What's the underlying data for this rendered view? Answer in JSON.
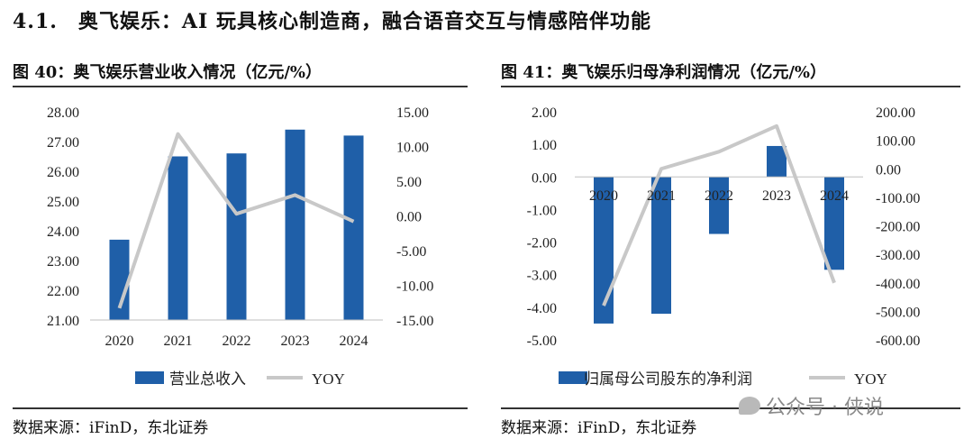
{
  "section_title": "4.1.　奥飞娱乐：AI 玩具核心制造商，融合语音交互与情感陪伴功能",
  "watermark": {
    "icon": "wechat-icon",
    "text": "公众号 · 侠说"
  },
  "chart_data": [
    {
      "type": "bar",
      "title": "图  40：奥飞娱乐营业收入情况（亿元/%）",
      "source": "数据来源：iFinD，东北证券",
      "categories": [
        "2020",
        "2021",
        "2022",
        "2023",
        "2024"
      ],
      "series": [
        {
          "name": "营业总收入",
          "type": "bar",
          "axis": "left",
          "color": "#1f5fa8",
          "values": [
            23.7,
            26.5,
            26.6,
            27.4,
            27.2
          ]
        },
        {
          "name": "YOY",
          "type": "line",
          "axis": "right",
          "color": "#c8c8c8",
          "values": [
            -13.3,
            11.8,
            0.3,
            3.0,
            -0.8
          ]
        }
      ],
      "ylim": [
        21,
        28
      ],
      "yticks": [
        "21.00",
        "22.00",
        "23.00",
        "24.00",
        "25.00",
        "26.00",
        "27.00",
        "28.00"
      ],
      "y2lim": [
        -15,
        15
      ],
      "y2ticks": [
        "-15.00",
        "-10.00",
        "-5.00",
        "0.00",
        "5.00",
        "10.00",
        "15.00"
      ],
      "grid": false,
      "legend_position": "bottom"
    },
    {
      "type": "bar",
      "title": "图  41：奥飞娱乐归母净利润情况（亿元/%）",
      "source": "数据来源：iFinD，东北证券",
      "categories": [
        "2020",
        "2021",
        "2022",
        "2023",
        "2024"
      ],
      "series": [
        {
          "name": "归属母公司股东的净利润",
          "type": "bar",
          "axis": "left",
          "color": "#1f5fa8",
          "values": [
            -4.5,
            -4.2,
            -1.75,
            0.95,
            -2.85
          ]
        },
        {
          "name": "YOY",
          "type": "line",
          "axis": "right",
          "color": "#c8c8c8",
          "values": [
            -480,
            0,
            60,
            150,
            -400
          ]
        }
      ],
      "ylim": [
        -5,
        2
      ],
      "yticks": [
        "2.00",
        "1.00",
        "0.00",
        "-1.00",
        "-2.00",
        "-3.00",
        "-4.00",
        "-5.00"
      ],
      "y2lim": [
        -600,
        200
      ],
      "y2ticks": [
        "200.00",
        "100.00",
        "0.00",
        "-100.00",
        "-200.00",
        "-300.00",
        "-400.00",
        "-500.00",
        "-600.00"
      ],
      "grid": false,
      "legend_position": "bottom"
    }
  ]
}
